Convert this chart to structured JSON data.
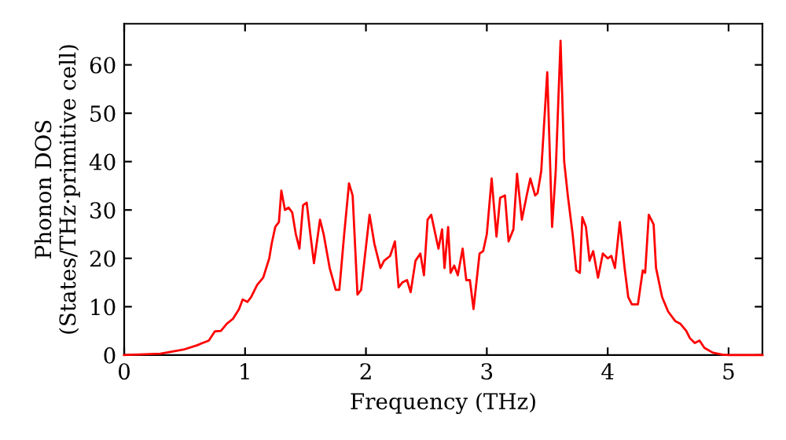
{
  "chart_data": {
    "type": "line",
    "xlabel": "Frequency (THz)",
    "ylabel": "Phonon DOS\n(States/THz·primitive cell)",
    "xlim": [
      0,
      5.28
    ],
    "ylim": [
      0,
      68.5
    ],
    "xticks": [
      0,
      1,
      2,
      3,
      4,
      5
    ],
    "yticks": [
      0,
      10,
      20,
      30,
      40,
      50,
      60
    ],
    "grid": false,
    "legend": false,
    "marker": "none",
    "line_style": "solid",
    "series": [
      {
        "color": "#ff0000",
        "x": [
          0,
          0.3,
          0.5,
          0.6,
          0.7,
          0.75,
          0.8,
          0.85,
          0.9,
          0.95,
          0.98,
          1.02,
          1.05,
          1.1,
          1.15,
          1.2,
          1.22,
          1.25,
          1.28,
          1.3,
          1.33,
          1.36,
          1.39,
          1.42,
          1.45,
          1.48,
          1.51,
          1.54,
          1.57,
          1.62,
          1.65,
          1.7,
          1.75,
          1.78,
          1.82,
          1.86,
          1.89,
          1.93,
          1.96,
          2.03,
          2.07,
          2.12,
          2.15,
          2.2,
          2.24,
          2.27,
          2.3,
          2.34,
          2.37,
          2.41,
          2.45,
          2.48,
          2.51,
          2.54,
          2.6,
          2.63,
          2.65,
          2.68,
          2.7,
          2.73,
          2.76,
          2.8,
          2.83,
          2.86,
          2.89,
          2.94,
          2.97,
          3.0,
          3.04,
          3.08,
          3.11,
          3.15,
          3.18,
          3.22,
          3.25,
          3.29,
          3.33,
          3.36,
          3.4,
          3.42,
          3.45,
          3.5,
          3.54,
          3.57,
          3.61,
          3.64,
          3.67,
          3.71,
          3.74,
          3.77,
          3.79,
          3.82,
          3.85,
          3.88,
          3.92,
          3.96,
          4.0,
          4.03,
          4.06,
          4.1,
          4.14,
          4.17,
          4.2,
          4.25,
          4.29,
          4.31,
          4.34,
          4.38,
          4.4,
          4.45,
          4.5,
          4.56,
          4.6,
          4.65,
          4.68,
          4.72,
          4.76,
          4.8,
          4.87,
          4.95,
          5.0,
          5.28
        ],
        "values": [
          0,
          0.3,
          1.2,
          2,
          3,
          4.9,
          5,
          6.5,
          7.5,
          9.5,
          11.5,
          11,
          12,
          14.5,
          16,
          20,
          23,
          26.5,
          27.5,
          34,
          30,
          30.5,
          29.5,
          25,
          22,
          31,
          31.5,
          25,
          19,
          28,
          25,
          18,
          13.5,
          13.5,
          25,
          35.5,
          33,
          12.5,
          13.5,
          29,
          23,
          18,
          19.5,
          20.5,
          23.5,
          14,
          15,
          15.5,
          13,
          19.5,
          21,
          16.5,
          28,
          29,
          22,
          26,
          18,
          26.5,
          17,
          18.5,
          16.5,
          22,
          15.5,
          15.5,
          9.5,
          21,
          21.5,
          25,
          36.5,
          24.5,
          32.5,
          33,
          23.5,
          26,
          37.5,
          28,
          33,
          36.5,
          33,
          33.5,
          38,
          58.5,
          26.5,
          38,
          65,
          40,
          33,
          25,
          17.5,
          17,
          28.5,
          26.5,
          19.5,
          21.5,
          16,
          21,
          20,
          20.5,
          18,
          27.5,
          18,
          12,
          10.5,
          10.5,
          17.5,
          17,
          29,
          27,
          18,
          12,
          9,
          7,
          6.5,
          5,
          3.5,
          2.5,
          3,
          1.5,
          0.5,
          0.1,
          0,
          0
        ]
      }
    ]
  }
}
